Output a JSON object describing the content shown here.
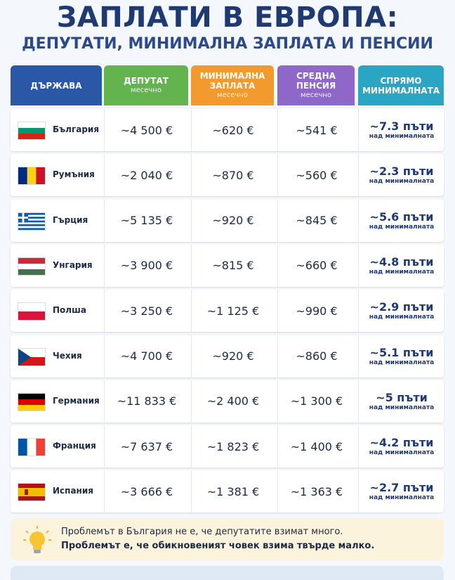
{
  "header": {
    "title": "ЗАПЛАТИ В ЕВРОПА:",
    "subtitle": "ДЕПУТАТИ, МИНИМАЛНА ЗАПЛАТА И ПЕНСИИ"
  },
  "table": {
    "columns": [
      {
        "label": "ДЪРЖАВА"
      },
      {
        "label": "ДЕПУТАТ",
        "note": "месечно"
      },
      {
        "label": "МИНИМАЛНА ЗАПЛАТА",
        "note": "месечно"
      },
      {
        "label": "СРЕДНА ПЕНСИЯ",
        "note": "месечно"
      },
      {
        "label": "СПРЯМО МИНИМАЛНАТА"
      }
    ],
    "rows": [
      {
        "country": "България",
        "mp": "~4 500 €",
        "min_wage": "~620 €",
        "pension": "~541 €",
        "ratio": "~7.3 пъти",
        "ratio_note": "над минималната"
      },
      {
        "country": "Румъния",
        "mp": "~2 040 €",
        "min_wage": "~870 €",
        "pension": "~560 €",
        "ratio": "~2.3 пъти",
        "ratio_note": "над минималната"
      },
      {
        "country": "Гърция",
        "mp": "~5 135 €",
        "min_wage": "~920 €",
        "pension": "~845 €",
        "ratio": "~5.6 пъти",
        "ratio_note": "над минималната"
      },
      {
        "country": "Унгария",
        "mp": "~3 900 €",
        "min_wage": "~815 €",
        "pension": "~660 €",
        "ratio": "~4.8 пъти",
        "ratio_note": "над минималната"
      },
      {
        "country": "Полша",
        "mp": "~3 250 €",
        "min_wage": "~1 125 €",
        "pension": "~990 €",
        "ratio": "~2.9 пъти",
        "ratio_note": "над минималната"
      },
      {
        "country": "Чехия",
        "mp": "~4 700 €",
        "min_wage": "~920 €",
        "pension": "~860 €",
        "ratio": "~5.1 пъти",
        "ratio_note": "над минималната"
      },
      {
        "country": "Германия",
        "mp": "~11 833 €",
        "min_wage": "~2 400 €",
        "pension": "~1 300 €",
        "ratio": "~5 пъти",
        "ratio_note": "над минималната"
      },
      {
        "country": "Франция",
        "mp": "~7 637 €",
        "min_wage": "~1 823 €",
        "pension": "~1 400 €",
        "ratio": "~4.2 пъти",
        "ratio_note": "над минималната"
      },
      {
        "country": "Испания",
        "mp": "~3 666 €",
        "min_wage": "~1 381 €",
        "pension": "~1 363 €",
        "ratio": "~2.7 пъти",
        "ratio_note": "над минималната"
      }
    ]
  },
  "footer": {
    "line1": "Проблемът в България не е, че депутатите взимат много.",
    "line2": "Проблемът е, че обикновеният човек взима твърде малко."
  }
}
